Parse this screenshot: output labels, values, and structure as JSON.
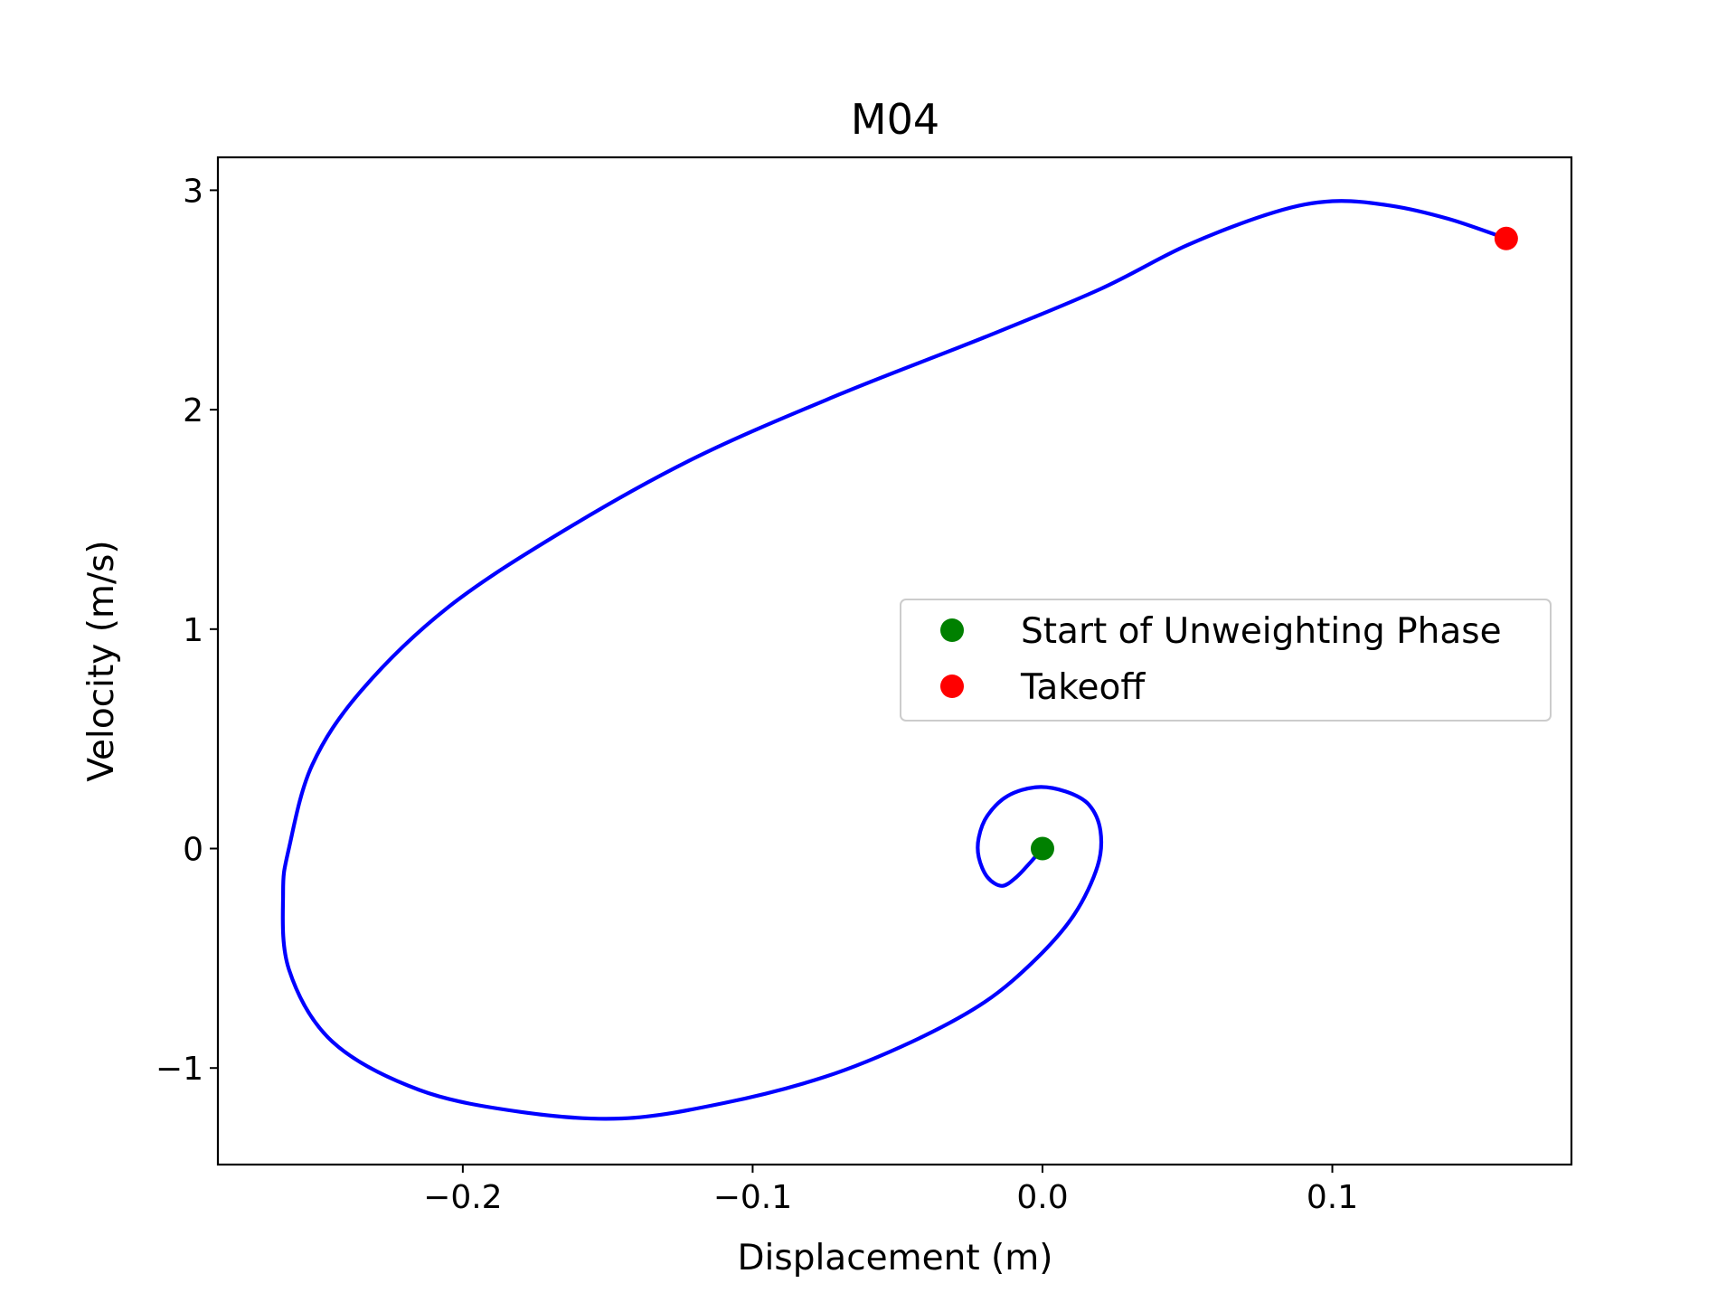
{
  "chart_data": {
    "type": "line",
    "title": "M04",
    "xlabel": "Displacement (m)",
    "ylabel": "Velocity (m/s)",
    "xlim": [
      -0.2845,
      0.1825
    ],
    "ylim": [
      -1.44,
      3.15
    ],
    "xticks": [
      -0.2,
      -0.1,
      0.0,
      0.1
    ],
    "xtick_labels": [
      "−0.2",
      "−0.1",
      "0.0",
      "0.1"
    ],
    "yticks": [
      -1,
      0,
      1,
      2,
      3
    ],
    "ytick_labels": [
      "−1",
      "0",
      "1",
      "2",
      "3"
    ],
    "grid": false,
    "legend_position": "center-right",
    "series": [
      {
        "kind": "line",
        "color": "#0000ff",
        "points": [
          [
            0.0,
            0.0
          ],
          [
            -0.004,
            -0.06
          ],
          [
            -0.009,
            -0.13
          ],
          [
            -0.014,
            -0.17
          ],
          [
            -0.019,
            -0.13
          ],
          [
            -0.022,
            -0.04
          ],
          [
            -0.022,
            0.05
          ],
          [
            -0.019,
            0.15
          ],
          [
            -0.012,
            0.24
          ],
          [
            -0.002,
            0.28
          ],
          [
            0.008,
            0.26
          ],
          [
            0.016,
            0.2
          ],
          [
            0.02,
            0.08
          ],
          [
            0.019,
            -0.08
          ],
          [
            0.011,
            -0.3
          ],
          [
            -0.002,
            -0.5
          ],
          [
            -0.02,
            -0.7
          ],
          [
            -0.045,
            -0.88
          ],
          [
            -0.075,
            -1.04
          ],
          [
            -0.11,
            -1.16
          ],
          [
            -0.145,
            -1.23
          ],
          [
            -0.18,
            -1.2
          ],
          [
            -0.215,
            -1.1
          ],
          [
            -0.245,
            -0.88
          ],
          [
            -0.26,
            -0.55
          ],
          [
            -0.262,
            -0.2
          ],
          [
            -0.26,
            0.0
          ],
          [
            -0.252,
            0.38
          ],
          [
            -0.235,
            0.72
          ],
          [
            -0.205,
            1.1
          ],
          [
            -0.165,
            1.45
          ],
          [
            -0.12,
            1.78
          ],
          [
            -0.07,
            2.07
          ],
          [
            -0.02,
            2.33
          ],
          [
            0.02,
            2.55
          ],
          [
            0.05,
            2.75
          ],
          [
            0.08,
            2.9
          ],
          [
            0.1,
            2.95
          ],
          [
            0.12,
            2.93
          ],
          [
            0.14,
            2.87
          ],
          [
            0.16,
            2.78
          ]
        ]
      },
      {
        "kind": "marker",
        "name": "Start of Unweighting Phase",
        "color": "#008000",
        "x": 0.0,
        "y": 0.0
      },
      {
        "kind": "marker",
        "name": "Takeoff",
        "color": "#ff0000",
        "x": 0.16,
        "y": 2.78
      }
    ]
  }
}
